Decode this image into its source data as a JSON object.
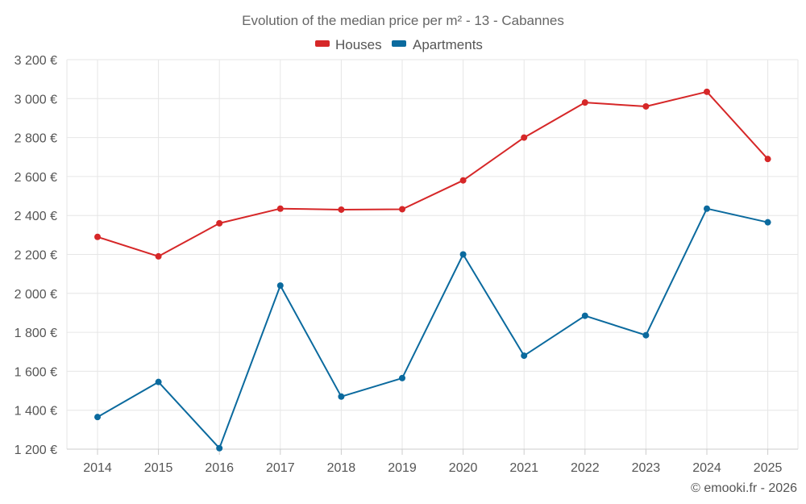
{
  "chart_data": {
    "type": "line",
    "title": "Evolution of the median price per m² - 13 - Cabannes",
    "categories": [
      "2014",
      "2015",
      "2016",
      "2017",
      "2018",
      "2019",
      "2020",
      "2021",
      "2022",
      "2023",
      "2024",
      "2025"
    ],
    "series": [
      {
        "name": "Houses",
        "color": "#d62728",
        "values": [
          2290,
          2190,
          2360,
          2435,
          2430,
          2432,
          2580,
          2800,
          2980,
          2960,
          3035,
          2690
        ]
      },
      {
        "name": "Apartments",
        "color": "#0b6a9e",
        "values": [
          1365,
          1545,
          1205,
          2040,
          1470,
          1565,
          2200,
          1680,
          1885,
          1785,
          2435,
          2365
        ]
      }
    ],
    "y_ticks": [
      "1 200 €",
      "1 400 €",
      "1 600 €",
      "1 800 €",
      "2 000 €",
      "2 200 €",
      "2 400 €",
      "2 600 €",
      "2 800 €",
      "3 000 €",
      "3 200 €"
    ],
    "ylim": [
      1200,
      3200
    ],
    "y_tick_step": 200,
    "xlabel": "",
    "ylabel": "",
    "legend_position": "top-center",
    "grid": true
  },
  "credit": "© emooki.fr - 2026"
}
